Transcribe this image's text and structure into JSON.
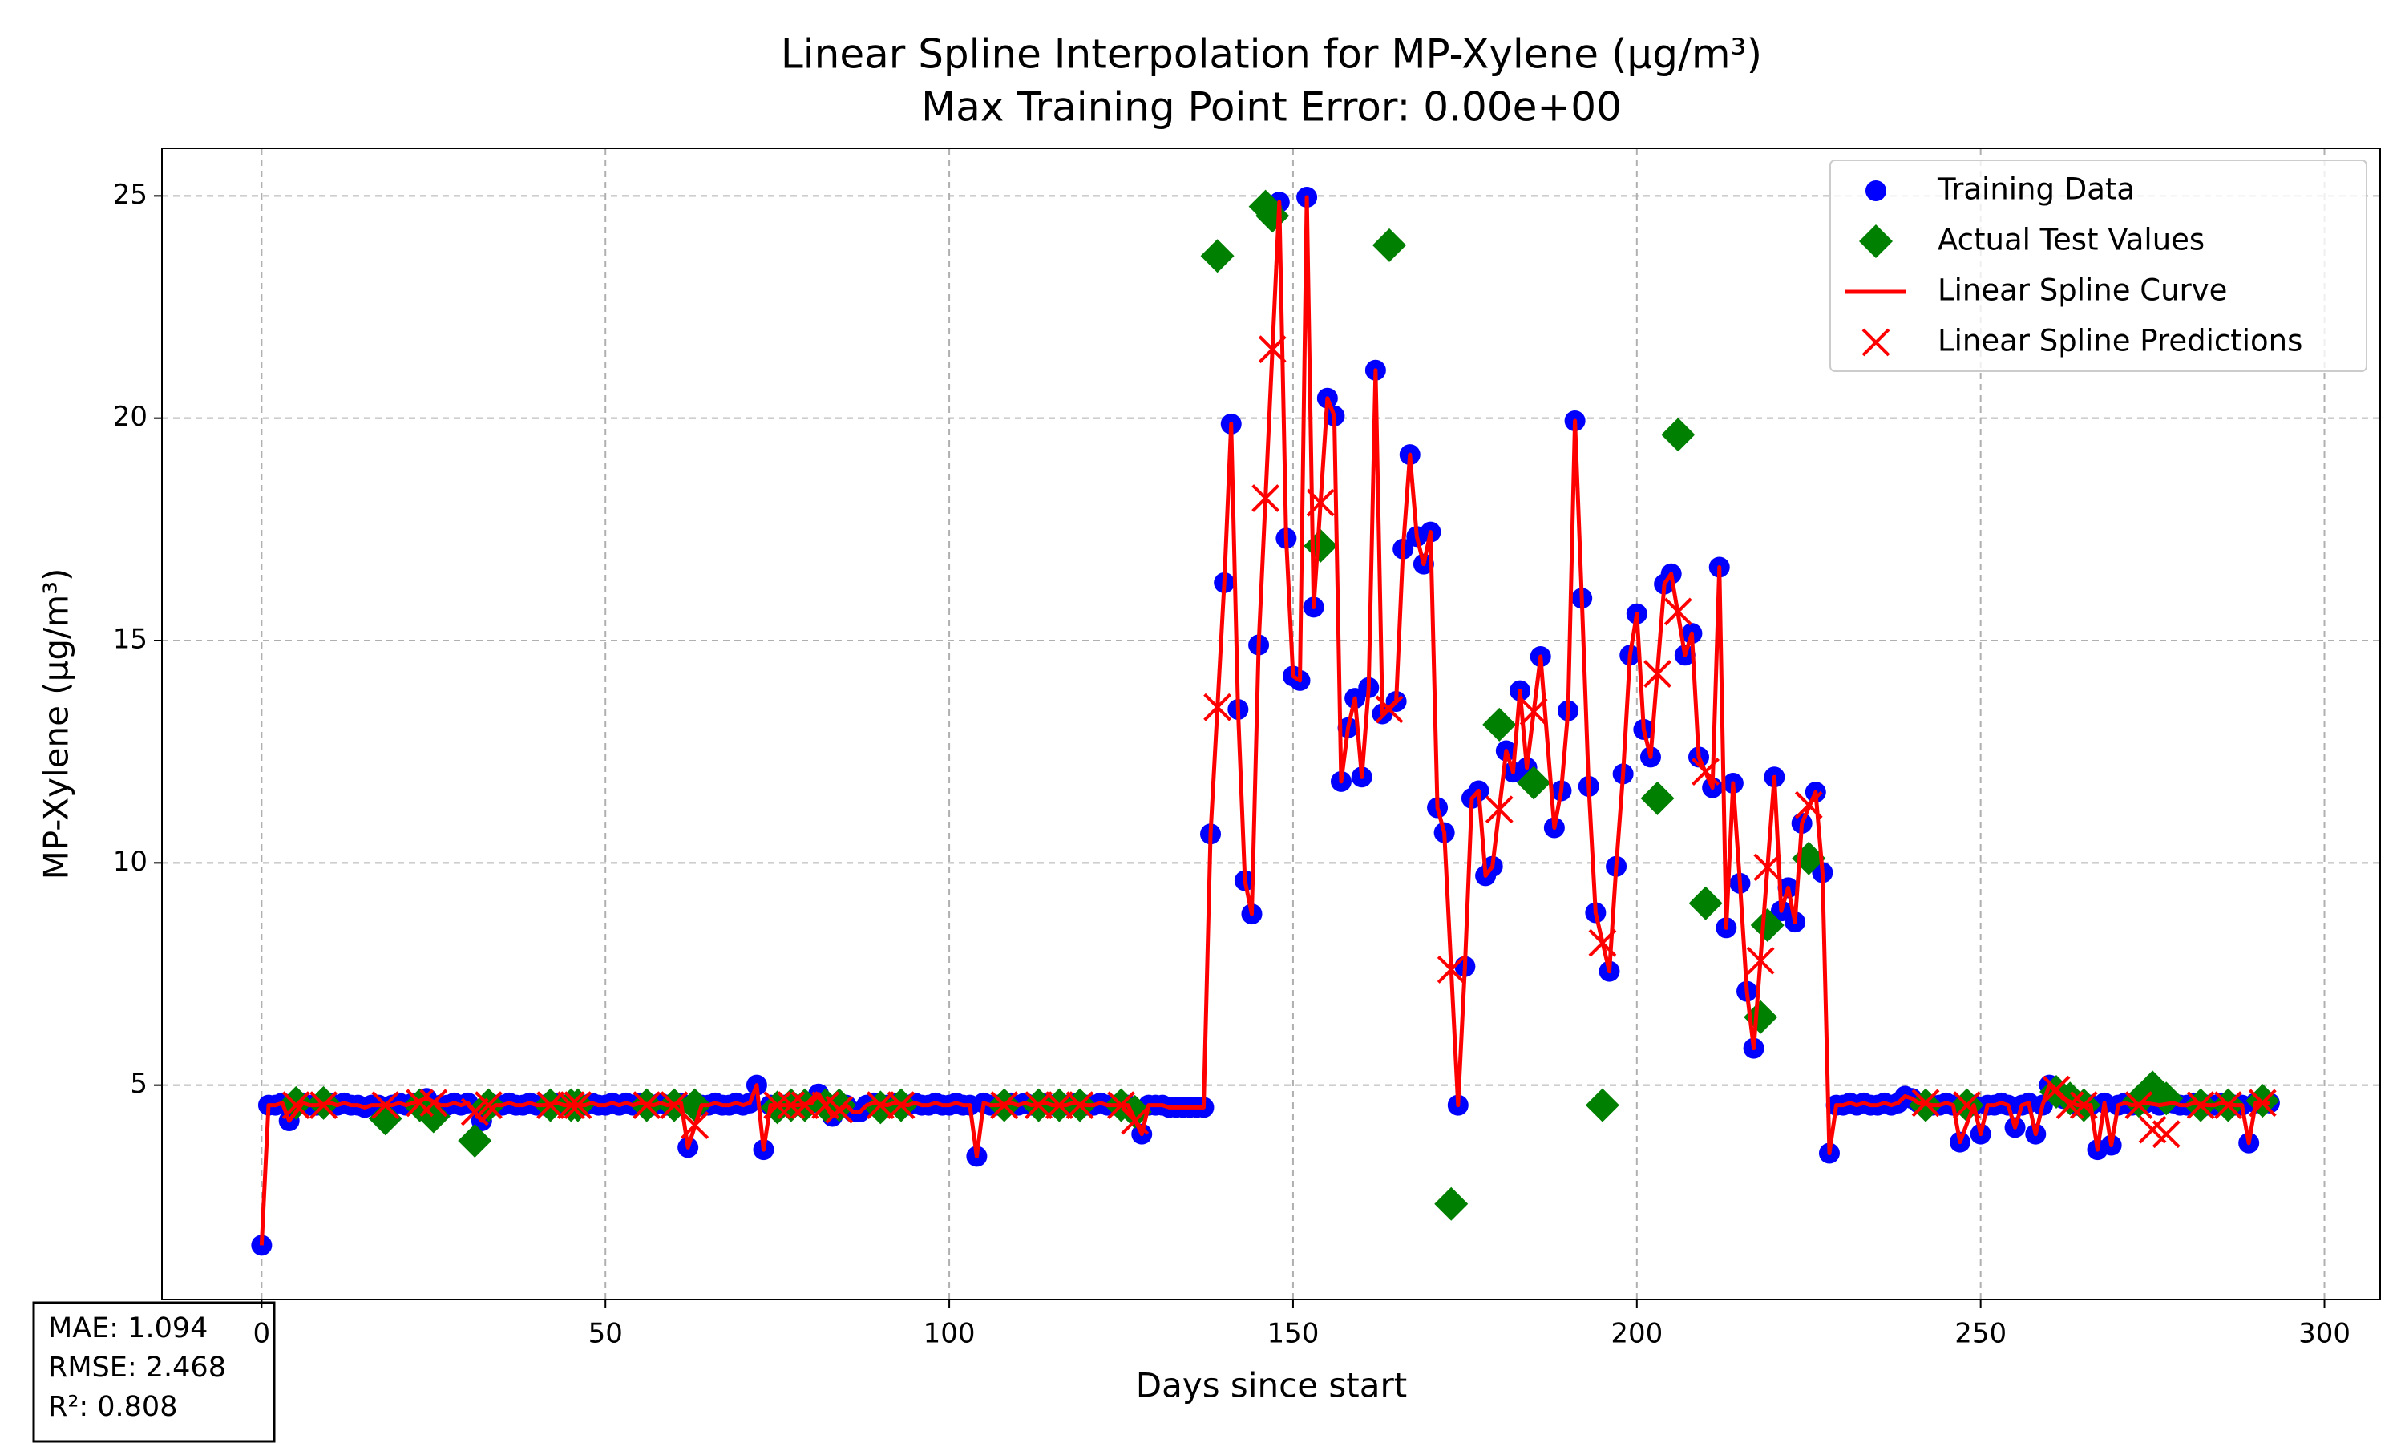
{
  "chart_data": {
    "type": "scatter",
    "title": "Linear Spline Interpolation for MP-Xylene (µg/m³)",
    "subtitle": "Max Training Point Error: 0.00e+00",
    "x_label": "Days since start",
    "y_label": "MP-Xylene (µg/m³)",
    "xlim": [
      -14.5,
      308.1
    ],
    "ylim": [
      0.18,
      26.07
    ],
    "xticks": [
      0,
      50,
      100,
      150,
      200,
      250,
      300
    ],
    "yticks": [
      5,
      10,
      15,
      20,
      25
    ],
    "grid": true,
    "legend": "upper right",
    "stats": [
      "MAE: 1.094",
      "RMSE: 2.468",
      "R²: 0.808"
    ],
    "series": [
      {
        "name": "Training Data",
        "color": "#0000ff",
        "marker": "o",
        "x": [
          0,
          1,
          2,
          3,
          4,
          6,
          7,
          8,
          10,
          11,
          12,
          13,
          14,
          15,
          16,
          17,
          19,
          20,
          21,
          22,
          24,
          26,
          27,
          28,
          29,
          30,
          32,
          34,
          35,
          36,
          37,
          38,
          39,
          40,
          41,
          43,
          44,
          47,
          48,
          49,
          50,
          51,
          52,
          53,
          54,
          55,
          57,
          58,
          59,
          61,
          62,
          64,
          65,
          66,
          67,
          68,
          69,
          70,
          71,
          72,
          73,
          74,
          76,
          78,
          80,
          81,
          83,
          85,
          86,
          87,
          88,
          89,
          91,
          92,
          94,
          95,
          96,
          97,
          98,
          99,
          100,
          101,
          102,
          103,
          104,
          105,
          106,
          107,
          109,
          110,
          111,
          112,
          114,
          115,
          117,
          118,
          120,
          121,
          122,
          123,
          124,
          126,
          128,
          129,
          130,
          131,
          132,
          133,
          134,
          135,
          136,
          137,
          138,
          140,
          141,
          142,
          143,
          144,
          145,
          148,
          149,
          150,
          151,
          152,
          153,
          155,
          156,
          157,
          158,
          159,
          160,
          161,
          162,
          163,
          165,
          166,
          167,
          168,
          169,
          170,
          171,
          172,
          174,
          175,
          176,
          177,
          178,
          179,
          181,
          182,
          183,
          184,
          186,
          188,
          189,
          190,
          191,
          192,
          193,
          194,
          196,
          197,
          198,
          199,
          200,
          201,
          202,
          204,
          205,
          207,
          208,
          209,
          211,
          212,
          213,
          214,
          215,
          216,
          217,
          220,
          221,
          222,
          223,
          224,
          226,
          227,
          228,
          229,
          230,
          231,
          232,
          233,
          234,
          235,
          236,
          237,
          238,
          239,
          240,
          241,
          243,
          244,
          245,
          246,
          247,
          249,
          250,
          251,
          252,
          253,
          254,
          255,
          256,
          257,
          258,
          259,
          260,
          262,
          264,
          266,
          267,
          268,
          269,
          270,
          271,
          272,
          274,
          276,
          278,
          279,
          280,
          281,
          283,
          284,
          285,
          287,
          288,
          289,
          290,
          292
        ],
        "values": [
          1.4,
          4.55,
          4.55,
          4.6,
          4.2,
          4.6,
          4.55,
          4.55,
          4.6,
          4.55,
          4.6,
          4.55,
          4.55,
          4.5,
          4.55,
          4.55,
          4.55,
          4.6,
          4.55,
          4.6,
          4.7,
          4.55,
          4.55,
          4.6,
          4.55,
          4.6,
          4.2,
          4.55,
          4.55,
          4.6,
          4.55,
          4.55,
          4.6,
          4.55,
          4.55,
          4.6,
          4.55,
          4.55,
          4.6,
          4.55,
          4.55,
          4.6,
          4.55,
          4.6,
          4.55,
          4.6,
          4.55,
          4.6,
          4.55,
          4.6,
          3.6,
          4.55,
          4.55,
          4.6,
          4.55,
          4.55,
          4.6,
          4.55,
          4.6,
          5.0,
          3.55,
          4.55,
          4.55,
          4.55,
          4.6,
          4.8,
          4.3,
          4.55,
          4.4,
          4.4,
          4.55,
          4.6,
          4.55,
          4.6,
          4.55,
          4.6,
          4.55,
          4.55,
          4.6,
          4.55,
          4.55,
          4.6,
          4.55,
          4.55,
          3.4,
          4.6,
          4.55,
          4.55,
          4.6,
          4.55,
          4.6,
          4.55,
          4.6,
          4.55,
          4.55,
          4.6,
          4.55,
          4.55,
          4.6,
          4.55,
          4.55,
          4.55,
          3.9,
          4.55,
          4.55,
          4.55,
          4.5,
          4.5,
          4.5,
          4.5,
          4.5,
          4.5,
          10.65,
          16.3,
          19.87,
          13.45,
          9.6,
          8.85,
          14.9,
          24.86,
          17.3,
          14.2,
          14.1,
          24.97,
          15.75,
          20.45,
          20.05,
          11.83,
          13.04,
          13.7,
          11.93,
          13.94,
          21.08,
          13.35,
          13.63,
          17.06,
          19.18,
          17.34,
          16.72,
          17.44,
          11.24,
          10.68,
          4.55,
          7.67,
          11.45,
          11.62,
          9.71,
          9.92,
          12.52,
          12.04,
          13.87,
          12.14,
          14.64,
          10.79,
          11.62,
          13.42,
          19.94,
          15.95,
          11.72,
          8.88,
          7.56,
          9.92,
          12.0,
          14.67,
          15.6,
          13.0,
          12.38,
          16.27,
          16.5,
          14.67,
          15.16,
          12.38,
          11.69,
          16.65,
          8.54,
          11.79,
          9.54,
          7.11,
          5.83,
          11.93,
          8.92,
          9.44,
          8.67,
          10.89,
          11.59,
          9.78,
          3.47,
          4.55,
          4.55,
          4.6,
          4.55,
          4.6,
          4.55,
          4.55,
          4.6,
          4.55,
          4.6,
          4.75,
          4.7,
          4.6,
          4.55,
          4.55,
          4.6,
          4.55,
          3.72,
          4.55,
          3.9,
          4.55,
          4.55,
          4.6,
          4.55,
          4.05,
          4.55,
          4.6,
          3.9,
          4.55,
          5.0,
          4.7,
          4.55,
          4.55,
          3.55,
          4.6,
          3.65,
          4.55,
          4.6,
          4.55,
          4.6,
          4.55,
          4.6,
          4.55,
          4.55,
          4.6,
          4.55,
          4.55,
          4.6,
          4.55,
          4.55,
          3.7,
          4.6,
          4.6
        ]
      },
      {
        "name": "Actual Test Values",
        "color": "#008000",
        "marker": "D",
        "x": [
          5,
          9,
          18,
          23,
          25,
          31,
          33,
          42,
          45,
          46,
          56,
          60,
          63,
          75,
          77,
          79,
          82,
          84,
          90,
          93,
          108,
          113,
          116,
          119,
          125,
          127,
          139,
          146,
          147,
          154,
          164,
          173,
          180,
          185,
          195,
          203,
          206,
          210,
          218,
          219,
          225,
          242,
          248,
          261,
          263,
          265,
          273,
          275,
          277,
          282,
          286,
          291
        ],
        "values": [
          4.6,
          4.6,
          4.25,
          4.55,
          4.3,
          3.75,
          4.55,
          4.55,
          4.55,
          4.55,
          4.55,
          4.55,
          4.55,
          4.5,
          4.55,
          4.55,
          4.55,
          4.55,
          4.5,
          4.55,
          4.55,
          4.55,
          4.55,
          4.55,
          4.55,
          4.4,
          23.65,
          24.76,
          24.55,
          17.13,
          23.89,
          2.33,
          13.11,
          11.8,
          4.55,
          11.45,
          19.63,
          9.09,
          6.53,
          8.6,
          10.1,
          4.55,
          4.55,
          4.85,
          4.7,
          4.55,
          4.65,
          4.95,
          4.7,
          4.55,
          4.55,
          4.65
        ]
      },
      {
        "name": "Linear Spline Curve",
        "color": "#ff0000",
        "marker": "line"
      },
      {
        "name": "Linear Spline Predictions",
        "color": "#ff0000",
        "marker": "x",
        "x": [
          5,
          9,
          18,
          23,
          25,
          31,
          33,
          42,
          45,
          46,
          56,
          60,
          63,
          75,
          77,
          79,
          82,
          84,
          90,
          93,
          108,
          113,
          116,
          119,
          125,
          127,
          139,
          146,
          147,
          154,
          164,
          173,
          180,
          185,
          195,
          203,
          206,
          210,
          218,
          219,
          225,
          242,
          248,
          261,
          263,
          265,
          273,
          275,
          277,
          282,
          286,
          291
        ],
        "values": [
          4.55,
          4.55,
          4.55,
          4.6,
          4.6,
          4.4,
          4.55,
          4.55,
          4.55,
          4.55,
          4.55,
          4.55,
          4.1,
          4.55,
          4.55,
          4.55,
          4.55,
          4.45,
          4.55,
          4.55,
          4.55,
          4.55,
          4.55,
          4.55,
          4.55,
          4.2,
          13.5,
          18.2,
          21.55,
          18.1,
          13.45,
          7.6,
          11.2,
          13.4,
          8.2,
          14.25,
          15.65,
          12.05,
          7.8,
          9.9,
          11.3,
          4.6,
          4.55,
          4.9,
          4.55,
          4.55,
          4.55,
          4.0,
          3.9,
          4.55,
          4.55,
          4.6
        ]
      }
    ]
  }
}
